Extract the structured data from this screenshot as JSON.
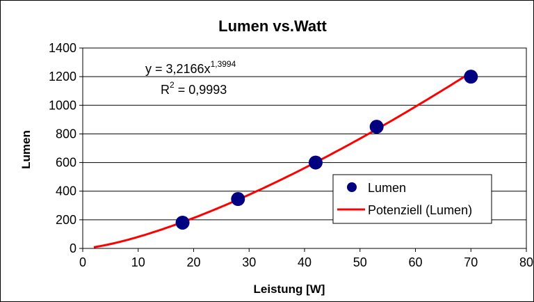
{
  "chart_data": {
    "type": "scatter",
    "title": "Lumen vs.Watt",
    "xlabel": "Leistung [W]",
    "ylabel": "Lumen",
    "xlim": [
      0,
      80
    ],
    "ylim": [
      0,
      1400
    ],
    "xticks": [
      0,
      10,
      20,
      30,
      40,
      50,
      60,
      70,
      80
    ],
    "yticks": [
      0,
      200,
      400,
      600,
      800,
      1000,
      1200,
      1400
    ],
    "grid": "horizontal",
    "legend_position": "right",
    "series": [
      {
        "name": "Lumen",
        "kind": "scatter",
        "color": "#000080",
        "points": [
          {
            "x": 18,
            "y": 180
          },
          {
            "x": 28,
            "y": 345
          },
          {
            "x": 42,
            "y": 600
          },
          {
            "x": 53,
            "y": 850
          },
          {
            "x": 70,
            "y": 1200
          }
        ]
      },
      {
        "name": "Potenziell (Lumen)",
        "kind": "trendline",
        "color": "#ff0000",
        "model": "power",
        "coefficient": 3.2166,
        "exponent": 1.3994,
        "x_range": [
          2,
          70
        ]
      }
    ],
    "annotations": {
      "equation_main": "y = 3,2166x",
      "equation_exponent": "1,3994",
      "r2_prefix": "R",
      "r2_superscript": "2",
      "r2_value": " = 0,9993"
    }
  }
}
